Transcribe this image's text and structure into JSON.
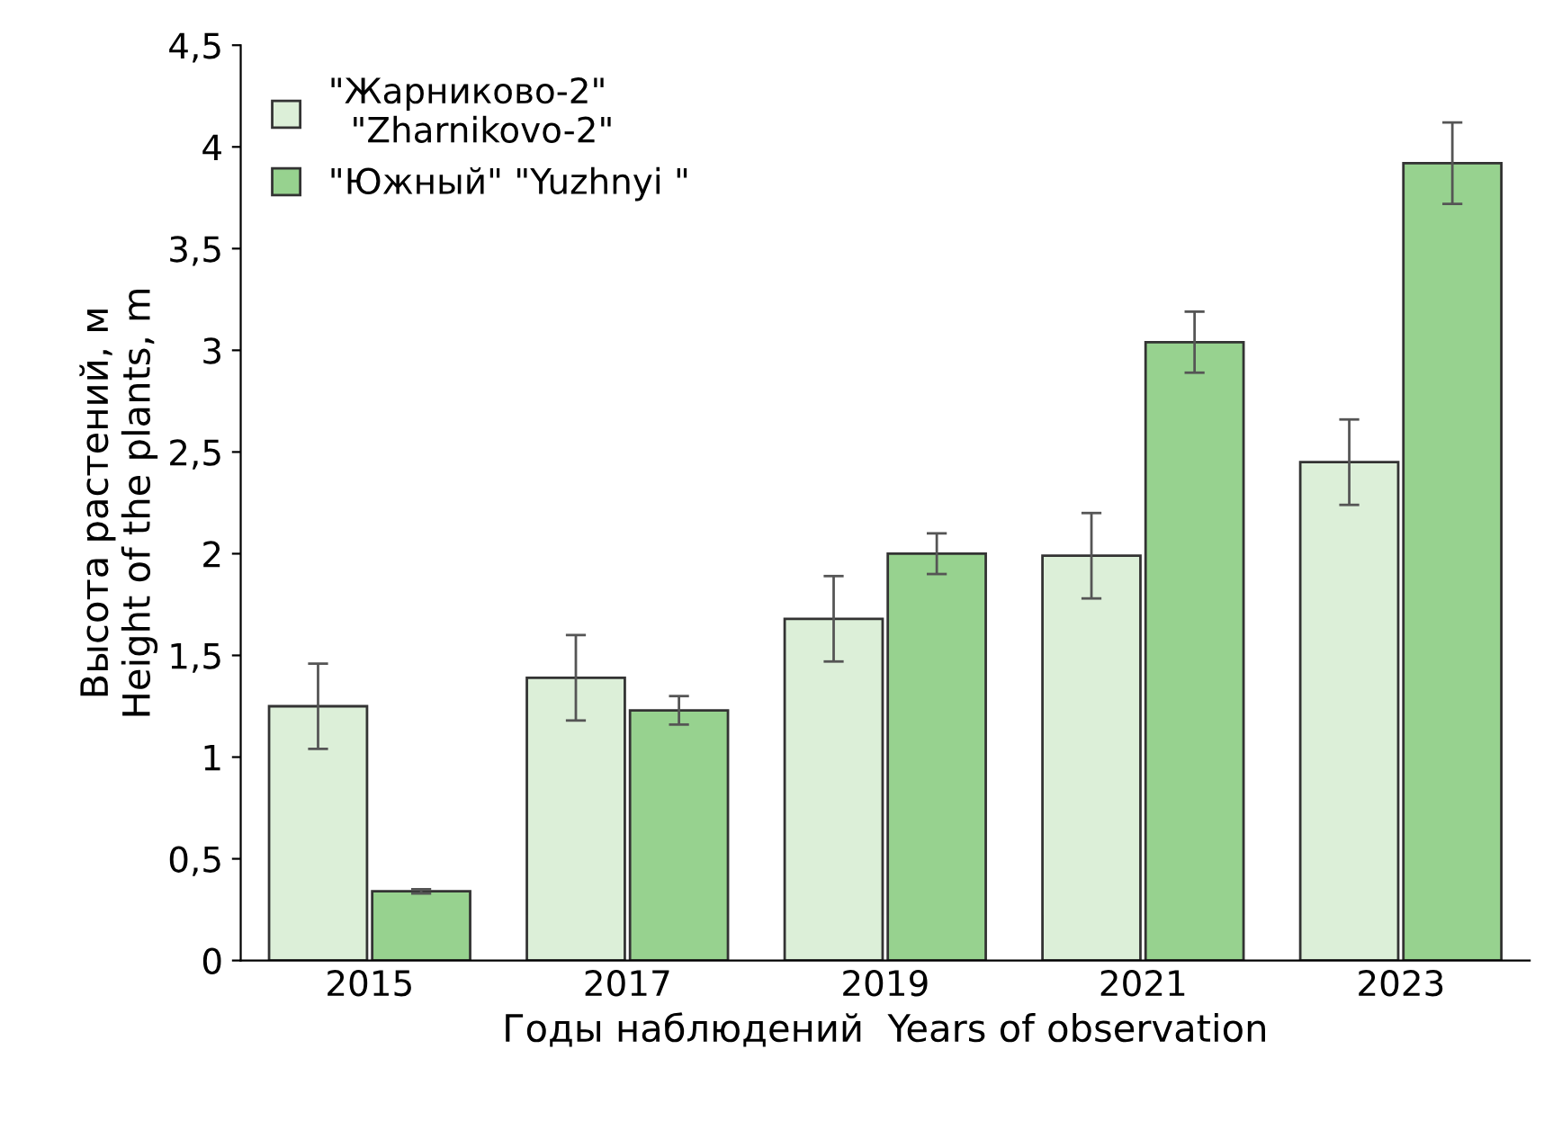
{
  "chart_data": {
    "type": "bar",
    "xlabel": "Годы наблюдений  Years of observation",
    "ylabel": "Высота растений, м\nHeight of the plants, m",
    "categories": [
      "2015",
      "2017",
      "2019",
      "2021",
      "2023"
    ],
    "series": [
      {
        "name": "\"Жарниково-2\"\n  \"Zharnikovo-2\"",
        "color": "#dcefd8",
        "values": [
          1.25,
          1.39,
          1.68,
          1.99,
          2.45
        ],
        "errors": [
          0.21,
          0.21,
          0.21,
          0.21,
          0.21
        ]
      },
      {
        "name": "\"Южный\" \"Yuzhnyi \"",
        "color": "#97d28f",
        "values": [
          0.34,
          1.23,
          2.0,
          3.04,
          3.92
        ],
        "errors": [
          0.01,
          0.07,
          0.1,
          0.15,
          0.2
        ]
      }
    ],
    "ylim": [
      0,
      4.5
    ],
    "yticks": [
      0,
      {
        "value": 0.5,
        "label": "0,5"
      },
      1,
      {
        "value": 1.5,
        "label": "1,5"
      },
      2,
      {
        "value": 2.5,
        "label": "2,5"
      },
      3,
      {
        "value": 3.5,
        "label": "3,5"
      },
      4,
      {
        "value": 4.5,
        "label": "4,5"
      }
    ],
    "grid": false,
    "legend": "top left"
  }
}
